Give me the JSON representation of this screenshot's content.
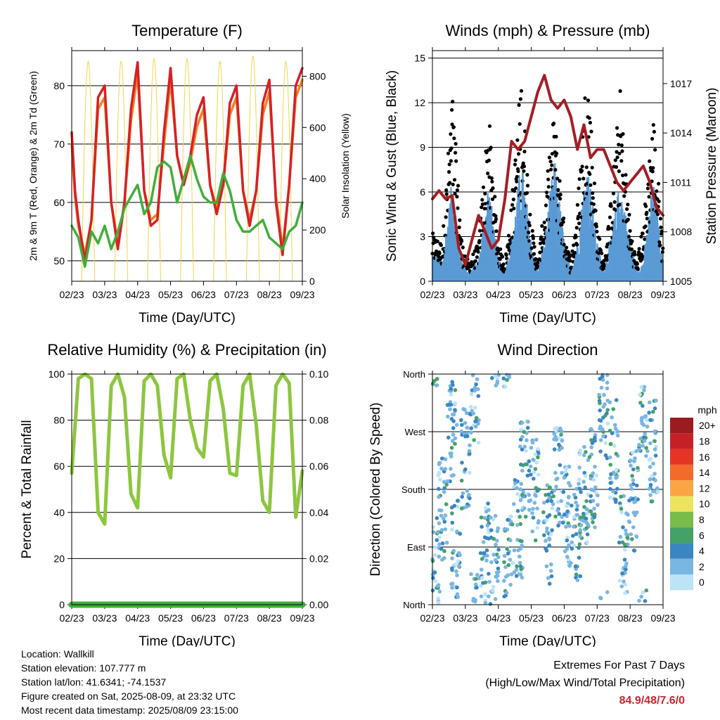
{
  "colors": {
    "t2m": "#d42227",
    "t9m": "#f5801e",
    "td": "#41ae3b",
    "solar": "#f3d34a",
    "wind": "#5a9bd5",
    "gust": "#000000",
    "pressure": "#a31f24",
    "rh": "#8dc63f",
    "precip": "#3fae3d"
  },
  "chart_data": [
    {
      "type": "line",
      "title": "Temperature (F)",
      "xlabel": "Time (Day/UTC)",
      "ylabel": "2m & 9m T (Red, Orange) & 2m Td (Green)",
      "ylabel_right": "Solar Insolation (Yellow)",
      "x_ticks": [
        "02/23",
        "03/23",
        "04/23",
        "05/23",
        "06/23",
        "07/23",
        "08/23",
        "09/23"
      ],
      "ylim": [
        46.5,
        86
      ],
      "y_ticks": [
        50,
        60,
        70,
        80
      ],
      "ylim_right": [
        0,
        900
      ],
      "y_ticks_right": [
        0,
        200,
        400,
        600,
        800
      ],
      "grid": "horizontal",
      "series": [
        {
          "key": "t2m",
          "x": [
            0,
            0.1,
            0.2,
            0.4,
            0.6,
            0.8,
            1.0,
            1.2,
            1.4,
            1.6,
            1.8,
            2.0,
            2.2,
            2.4,
            2.6,
            2.8,
            3.0,
            3.2,
            3.4,
            3.6,
            3.8,
            4.0,
            4.2,
            4.4,
            4.6,
            4.8,
            5.0,
            5.2,
            5.4,
            5.6,
            5.8,
            6.0,
            6.2,
            6.4,
            6.6,
            6.8,
            7.0
          ],
          "y": [
            72,
            62,
            57,
            50,
            57,
            78,
            80,
            60,
            52,
            60,
            76,
            84,
            62,
            56,
            57,
            72,
            83,
            68,
            63,
            68,
            75,
            78,
            63,
            58,
            63,
            77,
            80,
            62,
            56,
            62,
            77,
            81,
            60,
            51,
            63,
            80,
            83
          ]
        },
        {
          "key": "t9m",
          "x": [
            0,
            0.1,
            0.2,
            0.4,
            0.6,
            0.8,
            1.0,
            1.2,
            1.4,
            1.6,
            1.8,
            2.0,
            2.2,
            2.4,
            2.6,
            2.8,
            3.0,
            3.2,
            3.4,
            3.6,
            3.8,
            4.0,
            4.2,
            4.4,
            4.6,
            4.8,
            5.0,
            5.2,
            5.4,
            5.6,
            5.8,
            6.0,
            6.2,
            6.4,
            6.6,
            6.8,
            7.0
          ],
          "y": [
            70,
            61,
            56,
            51,
            57,
            76,
            78,
            60,
            53,
            60,
            74,
            82,
            62,
            57,
            58,
            70,
            81,
            68,
            63,
            67,
            73,
            76,
            63,
            59,
            63,
            75,
            78,
            62,
            57,
            62,
            75,
            79,
            61,
            52,
            63,
            78,
            81
          ]
        },
        {
          "key": "td",
          "x": [
            0,
            0.2,
            0.4,
            0.6,
            0.8,
            1.0,
            1.2,
            1.4,
            1.6,
            1.8,
            2.0,
            2.2,
            2.4,
            2.6,
            2.8,
            3.0,
            3.2,
            3.4,
            3.6,
            3.8,
            4.0,
            4.2,
            4.4,
            4.6,
            4.8,
            5.0,
            5.2,
            5.4,
            5.6,
            5.8,
            6.0,
            6.2,
            6.4,
            6.6,
            6.8,
            7.0
          ],
          "y": [
            56,
            54,
            49,
            55,
            53,
            56,
            52,
            55,
            59,
            61,
            63,
            58,
            60,
            66,
            67,
            66,
            60,
            64,
            68,
            64,
            61,
            60,
            60,
            65,
            62,
            57,
            55,
            55,
            56,
            57,
            54,
            53,
            52,
            55,
            56,
            60
          ]
        },
        {
          "key": "solar",
          "axis": "right",
          "x": [
            0.3,
            0.5,
            0.7,
            0.9,
            1.1,
            1.3,
            1.5,
            1.7,
            1.9,
            2.1,
            2.3,
            2.5,
            2.7,
            2.9,
            3.1,
            3.3,
            3.5,
            3.7,
            3.9,
            4.1,
            4.3,
            4.5,
            4.7,
            4.9,
            5.1,
            5.3,
            5.5,
            5.7,
            5.9,
            6.1,
            6.3,
            6.5,
            6.7,
            6.9
          ],
          "y": [
            0,
            860,
            0,
            0,
            860,
            0,
            0,
            870,
            0,
            0,
            870,
            0,
            0,
            860,
            0,
            0,
            880,
            0,
            0,
            860,
            0,
            0,
            870,
            0,
            0,
            870,
            0,
            0,
            850,
            0,
            0,
            860,
            0,
            0
          ]
        }
      ]
    },
    {
      "type": "line",
      "title": "Winds (mph) & Pressure (mb)",
      "xlabel": "Time (Day/UTC)",
      "ylabel": "Sonic Wind & Gust (Blue, Black)",
      "ylabel_right": "Station Pressure (Maroon)",
      "x_ticks": [
        "02/23",
        "03/23",
        "04/23",
        "05/23",
        "06/23",
        "07/23",
        "08/23",
        "09/23"
      ],
      "ylim": [
        0,
        15.5
      ],
      "y_ticks": [
        0,
        3,
        6,
        9,
        12,
        15
      ],
      "ylim_right": [
        1005,
        1019
      ],
      "y_ticks_right": [
        1005,
        1008,
        1011,
        1014,
        1017
      ],
      "grid": "horizontal",
      "series": [
        {
          "key": "wind",
          "x": [
            0,
            0.3,
            0.6,
            0.9,
            1.1,
            1.4,
            1.7,
            2.0,
            2.2,
            2.4,
            2.7,
            3.0,
            3.2,
            3.4,
            3.7,
            4.0,
            4.2,
            4.4,
            4.7,
            5.0,
            5.2,
            5.4,
            5.7,
            6.0,
            6.2,
            6.4,
            6.7,
            7.0
          ],
          "y": [
            1.5,
            1,
            5,
            1,
            0.5,
            1,
            5,
            1,
            0.5,
            2,
            6,
            2,
            0.5,
            2,
            6,
            2,
            0.5,
            2,
            6,
            2,
            0.5,
            2,
            5,
            2,
            0.5,
            1,
            5,
            1
          ]
        },
        {
          "key": "gust",
          "x": [
            0,
            0.3,
            0.6,
            0.9,
            1.1,
            1.4,
            1.7,
            2.0,
            2.2,
            2.4,
            2.7,
            3.0,
            3.2,
            3.4,
            3.7,
            4.0,
            4.2,
            4.4,
            4.7,
            5.0,
            5.2,
            5.4,
            5.7,
            6.0,
            6.2,
            6.4,
            6.7,
            7.0
          ],
          "y": [
            2.5,
            2,
            10,
            2,
            1,
            2,
            9,
            2,
            1,
            4,
            11,
            3,
            1,
            4,
            9,
            3,
            1,
            4,
            12,
            3,
            1,
            4,
            10,
            3,
            1,
            3,
            9,
            2
          ]
        },
        {
          "key": "pressure",
          "axis": "right",
          "x": [
            0,
            0.2,
            0.4,
            0.6,
            0.8,
            1.0,
            1.2,
            1.4,
            1.6,
            1.8,
            2.0,
            2.2,
            2.4,
            2.6,
            2.8,
            3.0,
            3.2,
            3.4,
            3.6,
            3.8,
            4.0,
            4.2,
            4.4,
            4.6,
            4.8,
            5.0,
            5.2,
            5.4,
            5.6,
            5.8,
            6.0,
            6.2,
            6.4,
            6.6,
            6.8,
            7.0
          ],
          "y": [
            1010,
            1010.5,
            1010,
            1010.2,
            1007,
            1006,
            1007.5,
            1009,
            1008,
            1007,
            1007.5,
            1010,
            1013.5,
            1013,
            1013.5,
            1015,
            1016.5,
            1017.5,
            1016,
            1015.5,
            1016,
            1015,
            1013,
            1014.5,
            1012.5,
            1013,
            1013,
            1012,
            1011,
            1010.5,
            1011,
            1011.5,
            1012,
            1011,
            1009.5,
            1009
          ]
        }
      ]
    },
    {
      "type": "line",
      "title": "Relative Humidity (%) & Precipitation (in)",
      "xlabel": "Time (Day/UTC)",
      "ylabel": "Percent & Total Rainfall",
      "x_ticks": [
        "02/23",
        "03/23",
        "04/23",
        "05/23",
        "06/23",
        "07/23",
        "08/23",
        "09/23"
      ],
      "ylim": [
        0,
        100
      ],
      "y_ticks": [
        0,
        20,
        40,
        60,
        80,
        100
      ],
      "ylim_right": [
        0,
        0.1
      ],
      "y_ticks_right": [
        "0.00",
        "0.02",
        "0.04",
        "0.06",
        "0.08",
        "0.10"
      ],
      "grid": "horizontal",
      "series": [
        {
          "key": "rh",
          "x": [
            0,
            0.2,
            0.4,
            0.6,
            0.8,
            1.0,
            1.2,
            1.4,
            1.6,
            1.8,
            2.0,
            2.2,
            2.4,
            2.6,
            2.8,
            3.0,
            3.2,
            3.4,
            3.6,
            3.8,
            4.0,
            4.2,
            4.4,
            4.6,
            4.8,
            5.0,
            5.2,
            5.4,
            5.6,
            5.8,
            6.0,
            6.2,
            6.4,
            6.6,
            6.8,
            7.0
          ],
          "y": [
            57,
            98,
            100,
            98,
            40,
            35,
            95,
            100,
            90,
            48,
            42,
            97,
            100,
            95,
            65,
            55,
            98,
            100,
            80,
            68,
            64,
            97,
            100,
            85,
            57,
            56,
            95,
            100,
            78,
            45,
            40,
            95,
            100,
            96,
            38,
            58
          ]
        },
        {
          "key": "precip",
          "axis": "right",
          "x": [
            0,
            7
          ],
          "y": [
            0,
            0
          ]
        }
      ]
    },
    {
      "type": "scatter",
      "title": "Wind Direction",
      "xlabel": "Time (Day/UTC)",
      "ylabel": "Direction (Colored By Speed)",
      "x_ticks": [
        "02/23",
        "03/23",
        "04/23",
        "05/23",
        "06/23",
        "07/23",
        "08/23",
        "09/23"
      ],
      "y_ticks": [
        "North",
        "East",
        "South",
        "West",
        "North"
      ],
      "ylim": [
        0,
        360
      ],
      "grid": "horizontal",
      "colorbar": {
        "unit": "mph",
        "labels": [
          "20+",
          "18",
          "16",
          "14",
          "12",
          "10",
          "8",
          "6",
          "4",
          "2",
          "0"
        ],
        "colors": [
          "#9b1c1f",
          "#c62026",
          "#e33426",
          "#f26b2b",
          "#f9a544",
          "#ece45f",
          "#79bc4a",
          "#45a267",
          "#3a86c3",
          "#7ab6e2",
          "#bde3f7"
        ]
      },
      "clusters": [
        {
          "x": 0.1,
          "dir": 60
        },
        {
          "x": 0.3,
          "dir": 150
        },
        {
          "x": 0.6,
          "dir": 270
        },
        {
          "x": 0.7,
          "dir": 90
        },
        {
          "x": 1.0,
          "dir": 230
        },
        {
          "x": 1.3,
          "dir": 330
        },
        {
          "x": 1.6,
          "dir": 80
        },
        {
          "x": 1.9,
          "dir": 60
        },
        {
          "x": 2.3,
          "dir": 60
        },
        {
          "x": 2.6,
          "dir": 120
        },
        {
          "x": 2.8,
          "dir": 210
        },
        {
          "x": 3.1,
          "dir": 180
        },
        {
          "x": 3.5,
          "dir": 110
        },
        {
          "x": 3.8,
          "dir": 200
        },
        {
          "x": 4.1,
          "dir": 140
        },
        {
          "x": 4.4,
          "dir": 110
        },
        {
          "x": 4.6,
          "dir": 170
        },
        {
          "x": 4.9,
          "dir": 200
        },
        {
          "x": 5.2,
          "dir": 300
        },
        {
          "x": 5.5,
          "dir": 240
        },
        {
          "x": 5.8,
          "dir": 90
        },
        {
          "x": 6.1,
          "dir": 160
        },
        {
          "x": 6.4,
          "dir": 310
        },
        {
          "x": 6.7,
          "dir": 240
        }
      ]
    }
  ],
  "footer": {
    "location": "Location: Wallkill",
    "elevation": "Station elevation: 107.777 m",
    "latlon": "Station lat/lon: 41.6341; -74.1537",
    "created": "Figure created on Sat, 2025-08-09, at 23:32 UTC",
    "recent": "Most recent data timestamp: 2025/08/09 23:15:00",
    "extremes_title": "Extremes For Past 7 Days",
    "extremes_sub": "(High/Low/Max Wind/Total Precipitation)",
    "extremes_value": "84.9/48/7.6/0"
  }
}
